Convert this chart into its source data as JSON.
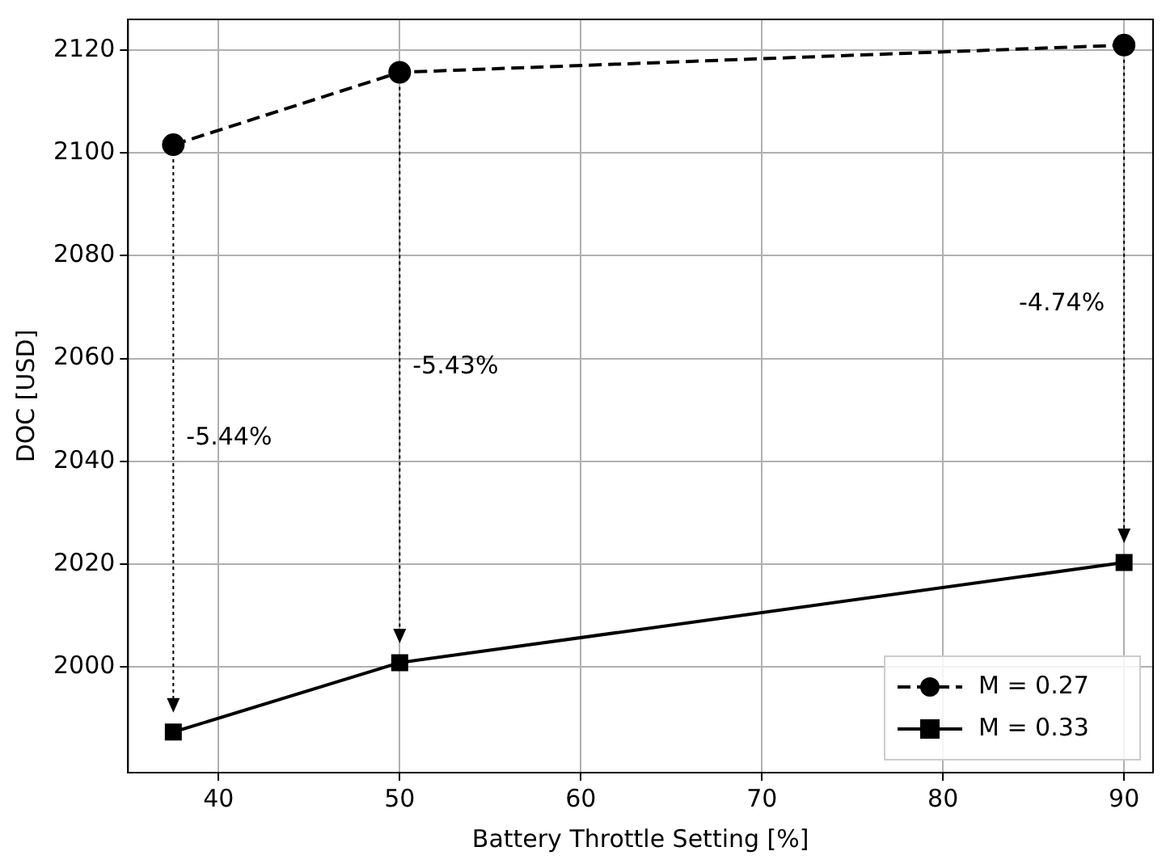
{
  "chart_data": {
    "type": "line",
    "xlabel": "Battery Throttle Setting [%]",
    "ylabel": "DOC [USD]",
    "x": [
      37.5,
      50,
      90
    ],
    "series": [
      {
        "name": "M = 0.27",
        "color": "#000000",
        "marker": "circle",
        "line_style": "dashed",
        "values": [
          2101.6,
          2115.7,
          2121.0
        ]
      },
      {
        "name": "M = 0.33",
        "color": "#000000",
        "marker": "square",
        "line_style": "solid",
        "values": [
          1987.3,
          2000.8,
          2020.3
        ]
      }
    ],
    "annotations": [
      "-5.44%",
      "-5.43%",
      "-4.74%"
    ],
    "xlim": [
      35,
      91.6
    ],
    "xticks": [
      40,
      50,
      60,
      70,
      80,
      90
    ],
    "ylim": [
      1979.4,
      2126
    ],
    "yticks": [
      2000,
      2020,
      2040,
      2060,
      2080,
      2100,
      2120
    ],
    "grid": true,
    "legend": "bottom right"
  }
}
